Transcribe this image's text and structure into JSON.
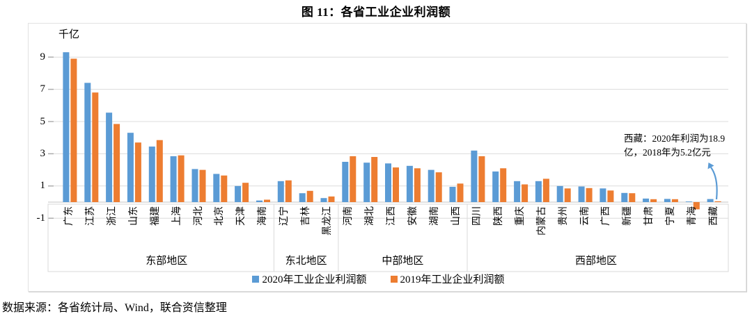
{
  "title": "图 11：各省工业企业利润额",
  "source_note": "数据来源：各省统计局、Wind，联合资信整理",
  "colors": {
    "series_2020": "#5B9BD5",
    "series_2019": "#ED7D31",
    "gridline": "#DCDCDC",
    "axis_line": "#C6C6C6",
    "label_box_border": "#D9D9D9",
    "arrow": "#5B9BD5"
  },
  "chart_data": {
    "type": "bar",
    "title": "图 11：各省工业企业利润额",
    "unit_label": "千亿",
    "grid": true,
    "legend_position": "bottom",
    "y_axis": {
      "ticks": [
        9,
        7,
        5,
        3,
        1,
        -1
      ],
      "ylim": [
        -1,
        10
      ]
    },
    "categories": [
      "广东",
      "江苏",
      "浙江",
      "山东",
      "福建",
      "上海",
      "河北",
      "北京",
      "天津",
      "海南",
      "辽宁",
      "吉林",
      "黑龙江",
      "河南",
      "湖北",
      "江西",
      "安徽",
      "湖南",
      "山西",
      "四川",
      "陕西",
      "重庆",
      "内蒙古",
      "贵州",
      "云南",
      "广西",
      "新疆",
      "甘肃",
      "宁夏",
      "青海",
      "西藏"
    ],
    "groups": [
      {
        "label": "东部地区",
        "count": 10
      },
      {
        "label": "东北地区",
        "count": 3
      },
      {
        "label": "中部地区",
        "count": 6
      },
      {
        "label": "西部地区",
        "count": 12
      }
    ],
    "series": [
      {
        "name": "2020年工业企业利润额",
        "color": "#5B9BD5",
        "values": [
          9.3,
          7.4,
          5.55,
          4.3,
          3.45,
          2.85,
          2.05,
          1.75,
          1.0,
          0.1,
          1.3,
          0.55,
          0.25,
          2.5,
          2.45,
          2.4,
          2.25,
          2.0,
          0.95,
          3.2,
          1.9,
          1.3,
          1.3,
          1.0,
          0.97,
          0.85,
          0.57,
          0.22,
          0.2,
          0.04,
          0.19
        ]
      },
      {
        "name": "2019年工业企业利润额",
        "color": "#ED7D31",
        "values": [
          8.9,
          6.8,
          4.85,
          3.7,
          3.85,
          2.9,
          2.0,
          1.65,
          1.2,
          0.15,
          1.35,
          0.7,
          0.35,
          2.85,
          2.8,
          2.15,
          2.1,
          1.85,
          1.15,
          2.85,
          2.1,
          1.1,
          1.45,
          0.85,
          0.87,
          0.72,
          0.55,
          0.18,
          0.18,
          -0.45,
          0.05
        ]
      }
    ],
    "annotation": {
      "text": "西藏：2020年利润为18.9亿，2018年为5.2亿元"
    }
  }
}
